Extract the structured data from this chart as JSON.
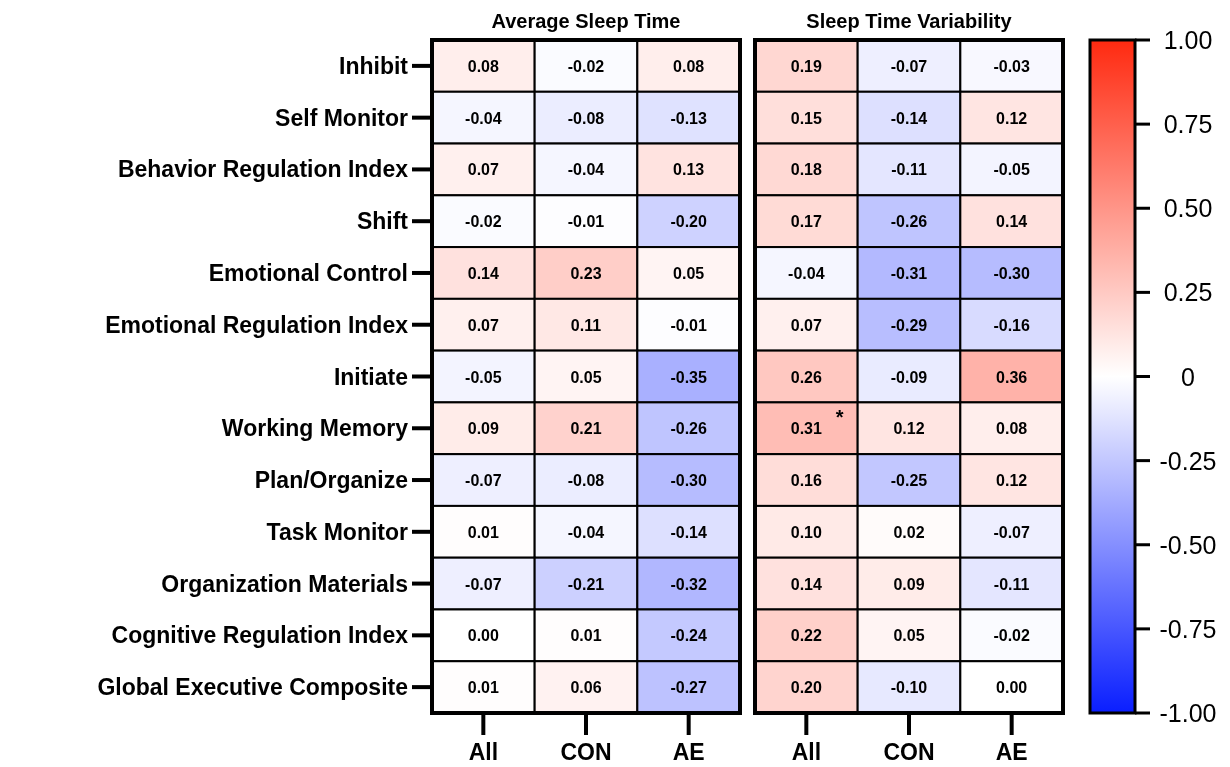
{
  "chart_data": [
    {
      "type": "heatmap",
      "title": "Average Sleep Time",
      "categories": [
        "All",
        "CON",
        "AE"
      ],
      "y_categories": [
        "Inhibit",
        "Self Monitor",
        "Behavior Regulation Index",
        "Shift",
        "Emotional Control",
        "Emotional Regulation Index",
        "Initiate",
        "Working Memory",
        "Plan/Organize",
        "Task Monitor",
        "Organization Materials",
        "Cognitive Regulation Index",
        "Global Executive Composite"
      ],
      "cells": [
        [
          0.08,
          -0.02,
          0.08
        ],
        [
          -0.04,
          -0.08,
          -0.13
        ],
        [
          0.07,
          -0.04,
          0.13
        ],
        [
          -0.02,
          -0.01,
          -0.2
        ],
        [
          0.14,
          0.23,
          0.05
        ],
        [
          0.07,
          0.11,
          -0.01
        ],
        [
          -0.05,
          0.05,
          -0.35
        ],
        [
          0.09,
          0.21,
          -0.26
        ],
        [
          -0.07,
          -0.08,
          -0.3
        ],
        [
          0.01,
          -0.04,
          -0.14
        ],
        [
          -0.07,
          -0.21,
          -0.32
        ],
        [
          0.0,
          0.01,
          -0.24
        ],
        [
          0.01,
          0.06,
          -0.27
        ]
      ],
      "cell_labels": [
        [
          "0.08",
          "-0.02",
          "0.08"
        ],
        [
          "-0.04",
          "-0.08",
          "-0.13"
        ],
        [
          "0.07",
          "-0.04",
          "0.13"
        ],
        [
          "-0.02",
          "-0.01",
          "-0.20"
        ],
        [
          "0.14",
          "0.23",
          "0.05"
        ],
        [
          "0.07",
          "0.11",
          "-0.01"
        ],
        [
          "-0.05",
          "0.05",
          "-0.35"
        ],
        [
          "0.09",
          "0.21",
          "-0.26"
        ],
        [
          "-0.07",
          "-0.08",
          "-0.30"
        ],
        [
          "0.01",
          "-0.04",
          "-0.14"
        ],
        [
          "-0.07",
          "-0.21",
          "-0.32"
        ],
        [
          "0.00",
          "0.01",
          "-0.24"
        ],
        [
          "0.01",
          "0.06",
          "-0.27"
        ]
      ]
    },
    {
      "type": "heatmap",
      "title": "Sleep Time Variability",
      "categories": [
        "All",
        "CON",
        "AE"
      ],
      "y_categories": [
        "Inhibit",
        "Self Monitor",
        "Behavior Regulation Index",
        "Shift",
        "Emotional Control",
        "Emotional Regulation Index",
        "Initiate",
        "Working Memory",
        "Plan/Organize",
        "Task Monitor",
        "Organization Materials",
        "Cognitive Regulation Index",
        "Global Executive Composite"
      ],
      "tick_labels": "x",
      "cells": [
        [
          0.19,
          -0.07,
          -0.03
        ],
        [
          0.15,
          -0.14,
          0.12
        ],
        [
          0.18,
          -0.11,
          -0.05
        ],
        [
          0.17,
          -0.26,
          0.14
        ],
        [
          -0.04,
          -0.31,
          -0.3
        ],
        [
          0.07,
          -0.29,
          -0.16
        ],
        [
          0.26,
          -0.09,
          0.36
        ],
        [
          0.31,
          0.12,
          0.08
        ],
        [
          0.16,
          -0.25,
          0.12
        ],
        [
          0.1,
          0.02,
          -0.07
        ],
        [
          0.14,
          0.09,
          -0.11
        ],
        [
          0.22,
          0.05,
          -0.02
        ],
        [
          0.2,
          -0.1,
          0.0
        ]
      ],
      "cell_labels": [
        [
          "0.19",
          "-0.07",
          "-0.03"
        ],
        [
          "0.15",
          "-0.14",
          "0.12"
        ],
        [
          "0.18",
          "-0.11",
          "-0.05"
        ],
        [
          "0.17",
          "-0.26",
          "0.14"
        ],
        [
          "-0.04",
          "-0.31",
          "-0.30"
        ],
        [
          "0.07",
          "-0.29",
          "-0.16"
        ],
        [
          "0.26",
          "-0.09",
          "0.36"
        ],
        [
          "0.31",
          "0.12",
          "0.08"
        ],
        [
          "0.16",
          "-0.25",
          "0.12"
        ],
        [
          "0.10",
          "0.02",
          "-0.07"
        ],
        [
          "0.14",
          "0.09",
          "-0.11"
        ],
        [
          "0.22",
          "0.05",
          "-0.02"
        ],
        [
          "0.20",
          "-0.10",
          "0.00"
        ]
      ],
      "clim": [
        -1,
        1
      ],
      "cticks": [
        {
          "value": 1,
          "label": "1.00"
        },
        {
          "value": 0.75,
          "label": "0.75"
        },
        {
          "value": 0.5,
          "label": "0.50"
        },
        {
          "value": 0.25,
          "label": "0.25"
        },
        0,
        {
          "value": -0.25,
          "label": "-0.25"
        },
        {
          "value": -0.5,
          "label": "-0.50"
        },
        {
          "value": -0.75,
          "label": "-0.75"
        },
        {
          "value": -1,
          "label": "-1.00"
        }
      ],
      "annotations": [
        "*"
      ]
    }
  ]
}
